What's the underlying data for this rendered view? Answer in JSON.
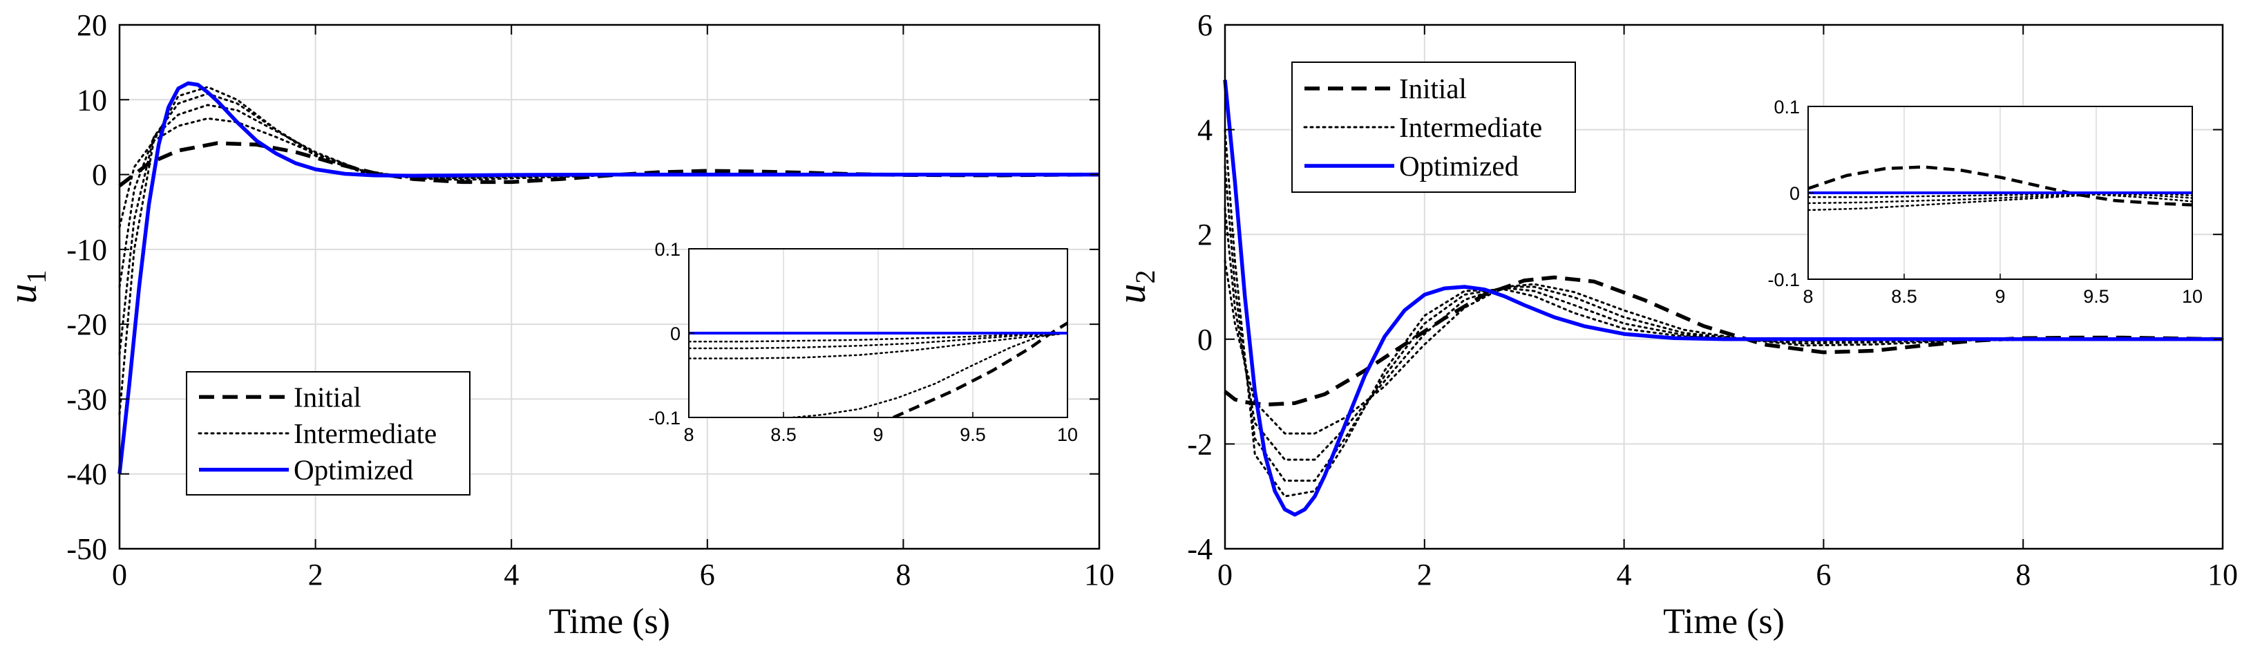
{
  "figure": {
    "background": "#ffffff"
  },
  "chart_data": [
    {
      "id": "u1",
      "type": "line",
      "xlabel": "Time (s)",
      "ylabel": "u",
      "ylabel_sub": "1",
      "xlim": [
        0,
        10
      ],
      "ylim": [
        -50,
        20
      ],
      "xticks": [
        0,
        2,
        4,
        6,
        8,
        10
      ],
      "yticks": [
        -50,
        -40,
        -30,
        -20,
        -10,
        0,
        10,
        20
      ],
      "grid": true,
      "legend": {
        "placement": "bottom-left",
        "entries": [
          "Initial",
          "Intermediate",
          "Optimized"
        ]
      },
      "series": [
        {
          "name": "Initial",
          "style": "dashed",
          "color": "#000000",
          "x": [
            0,
            0.3,
            0.6,
            1.0,
            1.4,
            1.8,
            2.2,
            2.6,
            3.0,
            3.5,
            4.0,
            4.5,
            5.0,
            5.5,
            6.0,
            6.5,
            7.0,
            7.5,
            8.0,
            8.5,
            9.0,
            9.5,
            10.0
          ],
          "y": [
            -1.5,
            1.5,
            3.2,
            4.2,
            4.0,
            3.0,
            1.5,
            0.2,
            -0.6,
            -1.0,
            -1.0,
            -0.6,
            -0.1,
            0.3,
            0.5,
            0.4,
            0.25,
            0.05,
            -0.05,
            -0.09,
            -0.1,
            -0.04,
            0.01
          ]
        },
        {
          "name": "Intermediate",
          "style": "dotted",
          "color": "#000000",
          "x": [
            0,
            0.15,
            0.35,
            0.6,
            0.9,
            1.2,
            1.6,
            2.0,
            2.5,
            3.0,
            3.5,
            4.0,
            5.0,
            6.0,
            7.0,
            8.0,
            9.0,
            10.0
          ],
          "y": [
            -7,
            1,
            4.5,
            6.5,
            7.5,
            7.0,
            5.0,
            2.8,
            0.5,
            -0.5,
            -0.7,
            -0.5,
            -0.1,
            0.1,
            0.05,
            -0.04,
            -0.06,
            0
          ]
        },
        {
          "name": "Intermediate",
          "style": "dotted",
          "color": "#000000",
          "x": [
            0,
            0.15,
            0.35,
            0.6,
            0.9,
            1.2,
            1.6,
            2.0,
            2.5,
            3.0,
            3.5,
            4.0,
            5.0,
            6.0,
            7.0,
            8.0,
            9.0,
            10.0
          ],
          "y": [
            -15,
            -2,
            5,
            8,
            9.3,
            8.6,
            5.8,
            3.0,
            0.4,
            -0.4,
            -0.5,
            -0.3,
            -0.05,
            0.05,
            0.02,
            -0.02,
            -0.04,
            0
          ]
        },
        {
          "name": "Intermediate",
          "style": "dotted",
          "color": "#000000",
          "x": [
            0,
            0.15,
            0.35,
            0.6,
            0.9,
            1.2,
            1.6,
            2.0,
            2.5,
            3.0,
            3.5,
            4.0,
            5.0,
            6.0,
            7.0,
            8.0,
            9.0,
            10.0
          ],
          "y": [
            -24,
            -6,
            5,
            9.5,
            10.8,
            9.5,
            6.0,
            2.8,
            0.3,
            -0.3,
            -0.35,
            -0.2,
            -0.03,
            0.02,
            0.01,
            -0.01,
            -0.02,
            0
          ]
        },
        {
          "name": "Intermediate",
          "style": "dotted",
          "color": "#000000",
          "x": [
            0,
            0.15,
            0.35,
            0.6,
            0.9,
            1.2,
            1.6,
            2.0,
            2.5,
            3.0,
            3.5,
            4.0,
            5.0,
            6.0,
            7.0,
            8.0,
            9.0,
            10.0
          ],
          "y": [
            -32,
            -10,
            4.5,
            10.5,
            11.7,
            10.0,
            6.0,
            2.5,
            0.2,
            -0.2,
            -0.2,
            -0.1,
            -0.01,
            0.01,
            0.0,
            0.0,
            -0.01,
            0
          ]
        },
        {
          "name": "Optimized",
          "style": "solid",
          "color": "#0000ff",
          "x": [
            0,
            0.1,
            0.2,
            0.3,
            0.4,
            0.5,
            0.6,
            0.7,
            0.8,
            0.9,
            1.0,
            1.2,
            1.4,
            1.6,
            1.8,
            2.0,
            2.3,
            2.6,
            3.0,
            3.5,
            4.0,
            5.0,
            6.0,
            7.0,
            8.0,
            9.0,
            10.0
          ],
          "y": [
            -40,
            -28,
            -15,
            -4,
            4,
            9,
            11.5,
            12.2,
            12.0,
            11.0,
            9.8,
            7.0,
            4.5,
            2.8,
            1.5,
            0.7,
            0.1,
            -0.1,
            -0.15,
            -0.1,
            -0.05,
            0,
            0,
            0,
            0,
            0,
            0
          ]
        }
      ],
      "inset": {
        "xlim": [
          8,
          10
        ],
        "ylim": [
          -0.1,
          0.1
        ],
        "xticks": [
          8,
          8.5,
          9,
          9.5,
          10
        ],
        "xtick_labels": [
          "8",
          "8.5",
          "9",
          "9.5",
          "10"
        ],
        "yticks": [
          -0.1,
          0,
          0.1
        ],
        "ytick_labels": [
          "-0.1",
          "0",
          "0.1"
        ],
        "series": [
          {
            "name": "Initial",
            "style": "dashed",
            "color": "#000000",
            "x": [
              9.08,
              9.2,
              9.4,
              9.6,
              9.8,
              9.9,
              10.0
            ],
            "y": [
              -0.1,
              -0.088,
              -0.068,
              -0.045,
              -0.018,
              -0.002,
              0.012
            ]
          },
          {
            "name": "Intermediate",
            "style": "dotted",
            "color": "#000000",
            "x": [
              8.55,
              8.7,
              8.9,
              9.1,
              9.3,
              9.5,
              9.7,
              9.85,
              10.0
            ],
            "y": [
              -0.1,
              -0.097,
              -0.09,
              -0.077,
              -0.06,
              -0.038,
              -0.017,
              -0.004,
              0
            ]
          },
          {
            "name": "Intermediate",
            "style": "dotted",
            "color": "#000000",
            "x": [
              8.0,
              8.3,
              8.6,
              8.9,
              9.2,
              9.5,
              9.8,
              10.0
            ],
            "y": [
              -0.03,
              -0.03,
              -0.029,
              -0.026,
              -0.02,
              -0.012,
              -0.004,
              0
            ]
          },
          {
            "name": "Intermediate",
            "style": "dotted",
            "color": "#000000",
            "x": [
              8.0,
              8.3,
              8.6,
              8.9,
              9.2,
              9.5,
              9.8,
              10.0
            ],
            "y": [
              -0.018,
              -0.018,
              -0.017,
              -0.015,
              -0.012,
              -0.007,
              -0.002,
              0
            ]
          },
          {
            "name": "Intermediate",
            "style": "dotted",
            "color": "#000000",
            "x": [
              8.0,
              8.3,
              8.6,
              8.9,
              9.2,
              9.5,
              9.8,
              10.0
            ],
            "y": [
              -0.01,
              -0.01,
              -0.009,
              -0.008,
              -0.006,
              -0.004,
              -0.001,
              0
            ]
          },
          {
            "name": "Optimized",
            "style": "solid",
            "color": "#0000ff",
            "x": [
              8.0,
              10.0
            ],
            "y": [
              0,
              0
            ]
          }
        ]
      }
    },
    {
      "id": "u2",
      "type": "line",
      "xlabel": "Time (s)",
      "ylabel": "u",
      "ylabel_sub": "2",
      "xlim": [
        0,
        10
      ],
      "ylim": [
        -4,
        6
      ],
      "xticks": [
        0,
        2,
        4,
        6,
        8,
        10
      ],
      "yticks": [
        -4,
        -2,
        0,
        2,
        4,
        6
      ],
      "grid": true,
      "legend": {
        "placement": "top-left",
        "entries": [
          "Initial",
          "Intermediate",
          "Optimized"
        ]
      },
      "series": [
        {
          "name": "Initial",
          "style": "dashed",
          "color": "#000000",
          "x": [
            0,
            0.1,
            0.2,
            0.4,
            0.7,
            1.0,
            1.4,
            1.8,
            2.2,
            2.6,
            3.0,
            3.3,
            3.7,
            4.2,
            4.8,
            5.4,
            6.0,
            6.5,
            7.0,
            7.5,
            8.0,
            8.5,
            9.0,
            10.0
          ],
          "y": [
            -1.0,
            -1.15,
            -1.2,
            -1.25,
            -1.22,
            -1.05,
            -0.6,
            -0.1,
            0.4,
            0.85,
            1.12,
            1.18,
            1.1,
            0.75,
            0.25,
            -0.1,
            -0.25,
            -0.22,
            -0.12,
            -0.03,
            0.02,
            0.03,
            0.03,
            0.0
          ]
        },
        {
          "name": "Intermediate",
          "style": "dotted",
          "color": "#000000",
          "x": [
            0,
            0.1,
            0.3,
            0.6,
            0.9,
            1.2,
            1.6,
            2.0,
            2.4,
            2.8,
            3.1,
            3.5,
            4.0,
            4.6,
            5.2,
            5.8,
            6.5,
            7.5,
            10.0
          ],
          "y": [
            1.5,
            0.3,
            -1.2,
            -1.8,
            -1.8,
            -1.5,
            -0.9,
            -0.1,
            0.6,
            1.0,
            1.05,
            0.9,
            0.55,
            0.18,
            0.0,
            -0.12,
            -0.1,
            -0.02,
            0
          ]
        },
        {
          "name": "Intermediate",
          "style": "dotted",
          "color": "#000000",
          "x": [
            0,
            0.1,
            0.3,
            0.6,
            0.9,
            1.2,
            1.6,
            2.0,
            2.4,
            2.8,
            3.1,
            3.5,
            4.0,
            4.6,
            5.2,
            5.8,
            6.5,
            7.5,
            10.0
          ],
          "y": [
            2.5,
            0.6,
            -1.6,
            -2.3,
            -2.3,
            -1.7,
            -0.8,
            0.1,
            0.75,
            1.0,
            1.0,
            0.8,
            0.42,
            0.12,
            0.0,
            -0.08,
            -0.06,
            -0.01,
            0
          ]
        },
        {
          "name": "Intermediate",
          "style": "dotted",
          "color": "#000000",
          "x": [
            0,
            0.1,
            0.3,
            0.6,
            0.9,
            1.2,
            1.6,
            2.0,
            2.4,
            2.8,
            3.1,
            3.5,
            4.0,
            4.6,
            5.2,
            5.8,
            6.5,
            7.5,
            10.0
          ],
          "y": [
            3.3,
            1.0,
            -1.9,
            -2.7,
            -2.7,
            -1.9,
            -0.7,
            0.3,
            0.85,
            0.98,
            0.92,
            0.65,
            0.3,
            0.08,
            0.0,
            -0.04,
            -0.03,
            0,
            0
          ]
        },
        {
          "name": "Intermediate",
          "style": "dotted",
          "color": "#000000",
          "x": [
            0,
            0.1,
            0.3,
            0.6,
            0.9,
            1.2,
            1.6,
            2.0,
            2.4,
            2.8,
            3.1,
            3.5,
            4.0,
            4.6,
            5.2,
            5.8,
            6.5,
            7.5,
            10.0
          ],
          "y": [
            4.0,
            1.5,
            -2.2,
            -3.0,
            -2.9,
            -2.0,
            -0.6,
            0.45,
            0.92,
            0.95,
            0.82,
            0.5,
            0.2,
            0.05,
            0.0,
            -0.02,
            -0.01,
            0,
            0
          ]
        },
        {
          "name": "Optimized",
          "style": "solid",
          "color": "#0000ff",
          "x": [
            0,
            0.1,
            0.2,
            0.3,
            0.4,
            0.5,
            0.6,
            0.7,
            0.8,
            0.9,
            1.0,
            1.2,
            1.4,
            1.6,
            1.8,
            2.0,
            2.2,
            2.4,
            2.6,
            2.8,
            3.0,
            3.3,
            3.6,
            4.0,
            4.5,
            5.0,
            5.5,
            6.0,
            7.0,
            8.0,
            9.0,
            10.0
          ],
          "y": [
            4.95,
            3.0,
            0.8,
            -1.0,
            -2.2,
            -2.9,
            -3.25,
            -3.35,
            -3.25,
            -3.0,
            -2.6,
            -1.65,
            -0.7,
            0.05,
            0.55,
            0.85,
            0.97,
            1.0,
            0.95,
            0.82,
            0.65,
            0.42,
            0.25,
            0.1,
            0.02,
            0.0,
            0.0,
            0.0,
            0.0,
            0.0,
            0.0,
            0.0
          ]
        }
      ],
      "inset": {
        "xlim": [
          8,
          10
        ],
        "ylim": [
          -0.1,
          0.1
        ],
        "xticks": [
          8,
          8.5,
          9,
          9.5,
          10
        ],
        "xtick_labels": [
          "8",
          "8.5",
          "9",
          "9.5",
          "10"
        ],
        "yticks": [
          -0.1,
          0,
          0.1
        ],
        "ytick_labels": [
          "-0.1",
          "0",
          "0.1"
        ],
        "series": [
          {
            "name": "Initial",
            "style": "dashed",
            "color": "#000000",
            "x": [
              8.0,
              8.2,
              8.4,
              8.6,
              8.8,
              9.0,
              9.2,
              9.4,
              9.6,
              9.8,
              10.0
            ],
            "y": [
              0.005,
              0.02,
              0.028,
              0.03,
              0.026,
              0.018,
              0.008,
              -0.002,
              -0.009,
              -0.012,
              -0.014
            ]
          },
          {
            "name": "Intermediate",
            "style": "dotted",
            "color": "#000000",
            "x": [
              8.0,
              8.3,
              8.6,
              8.9,
              9.2,
              9.5,
              9.8,
              10.0
            ],
            "y": [
              -0.02,
              -0.018,
              -0.014,
              -0.01,
              -0.006,
              -0.002,
              -0.006,
              -0.01
            ]
          },
          {
            "name": "Intermediate",
            "style": "dotted",
            "color": "#000000",
            "x": [
              8.0,
              8.3,
              8.6,
              8.9,
              9.2,
              9.5,
              9.8,
              10.0
            ],
            "y": [
              -0.012,
              -0.011,
              -0.009,
              -0.007,
              -0.004,
              -0.001,
              -0.003,
              -0.006
            ]
          },
          {
            "name": "Intermediate",
            "style": "dotted",
            "color": "#000000",
            "x": [
              8.0,
              8.3,
              8.6,
              8.9,
              9.2,
              9.5,
              9.8,
              10.0
            ],
            "y": [
              -0.005,
              -0.005,
              -0.004,
              -0.003,
              -0.002,
              0.0,
              -0.001,
              -0.003
            ]
          },
          {
            "name": "Optimized",
            "style": "solid",
            "color": "#0000ff",
            "x": [
              8.0,
              10.0
            ],
            "y": [
              0,
              0
            ]
          }
        ]
      }
    }
  ]
}
